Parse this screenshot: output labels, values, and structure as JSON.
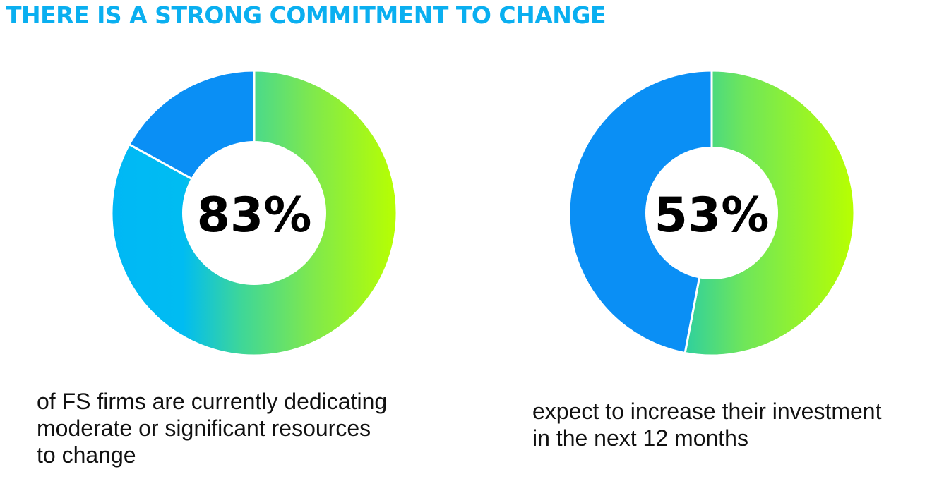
{
  "headline": "THERE IS A STRONG COMMITMENT TO CHANGE",
  "colors": {
    "headline": "#0aaff0",
    "gradient_green": "#b8ff00",
    "gradient_mid": "#44dd88",
    "gradient_cyan": "#00b8f5",
    "blue_segment": "#0a8ff5",
    "divider": "#ffffff"
  },
  "chart_data": [
    {
      "type": "pie",
      "donut": true,
      "center_label": "83%",
      "values": [
        83,
        17
      ],
      "colors": [
        "gradient green-to-cyan",
        "#0a8ff5"
      ],
      "caption_lines": [
        "of FS firms are currently dedicating",
        "moderate or significant resources",
        "to change"
      ]
    },
    {
      "type": "pie",
      "donut": true,
      "center_label": "53%",
      "values": [
        53,
        47
      ],
      "colors": [
        "gradient green-to-lime",
        "#0a8ff5"
      ],
      "caption_lines": [
        "expect to increase their investment",
        "in the next 12 months"
      ]
    }
  ]
}
